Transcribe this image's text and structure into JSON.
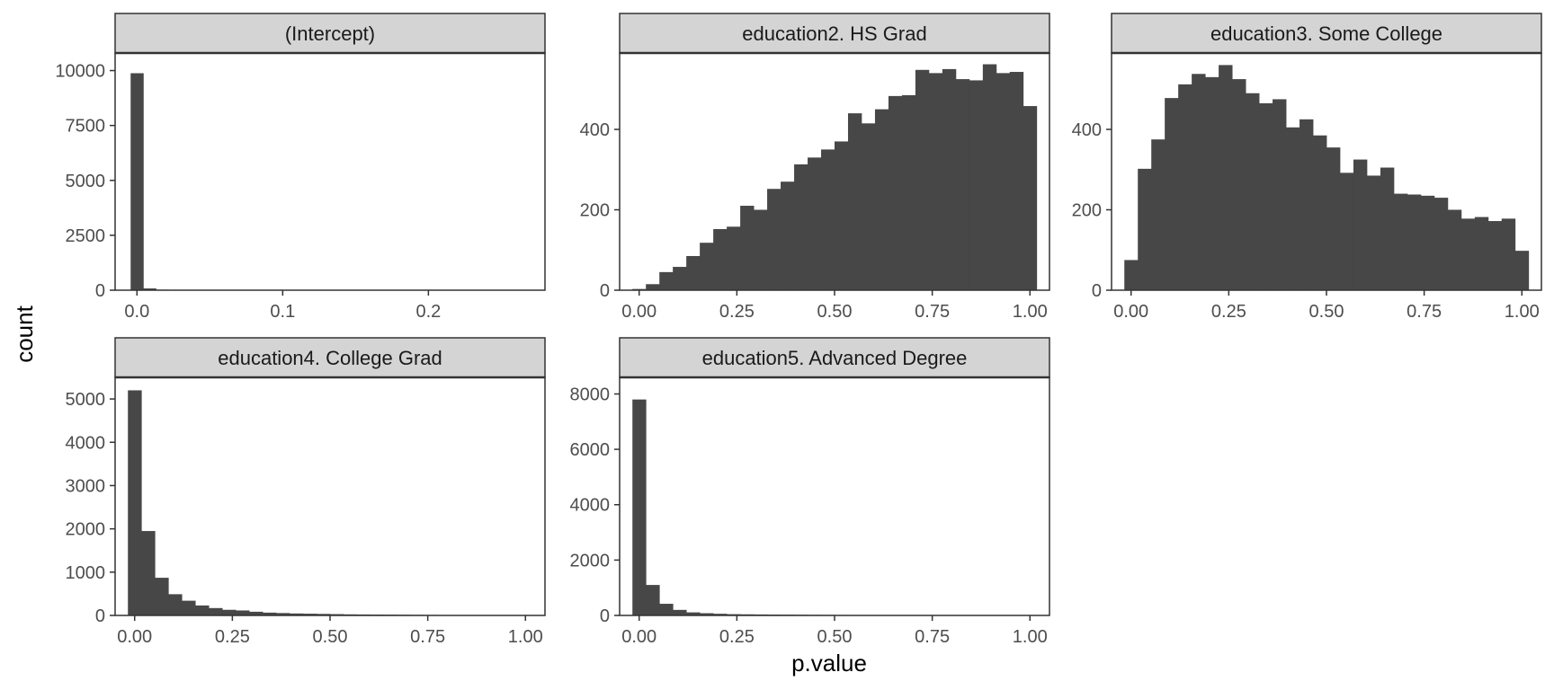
{
  "figure": {
    "xlabel": "p.value",
    "ylabel": "count",
    "bar_color": "#474747",
    "strip_fill": "#d4d4d4",
    "strip_border": "#333333",
    "panel_border": "#333333"
  },
  "chart_data": [
    {
      "type": "bar",
      "title": "(Intercept)",
      "xlim": [
        -0.015,
        0.28
      ],
      "ylim": [
        0,
        10800
      ],
      "bin_width": 0.0087,
      "x_ticks": [
        0.0,
        0.1,
        0.2
      ],
      "x_tick_labels": [
        "0.0",
        "0.1",
        "0.2"
      ],
      "y_ticks": [
        0,
        2500,
        5000,
        7500,
        10000
      ],
      "y_tick_labels": [
        "0",
        "2500",
        "5000",
        "7500",
        "10000"
      ],
      "x": [
        0.0,
        0.0087,
        0.0174,
        0.0261,
        0.0348,
        0.0435,
        0.0522,
        0.0609,
        0.0696,
        0.0783,
        0.087
      ],
      "values": [
        9880,
        80,
        25,
        15,
        10,
        5,
        0,
        8,
        5,
        4,
        3
      ]
    },
    {
      "type": "bar",
      "title": "education2. HS Grad",
      "xlim": [
        -0.05,
        1.05
      ],
      "ylim": [
        0,
        590
      ],
      "bin_width": 0.0345,
      "x_ticks": [
        0.0,
        0.25,
        0.5,
        0.75,
        1.0
      ],
      "x_tick_labels": [
        "0.00",
        "0.25",
        "0.50",
        "0.75",
        "1.00"
      ],
      "y_ticks": [
        0,
        200,
        400
      ],
      "y_tick_labels": [
        "0",
        "200",
        "400"
      ],
      "x": [
        0.0,
        0.0345,
        0.069,
        0.1034,
        0.1379,
        0.1724,
        0.2069,
        0.2414,
        0.2759,
        0.3103,
        0.3448,
        0.3793,
        0.4138,
        0.4483,
        0.4828,
        0.5172,
        0.5517,
        0.5862,
        0.6207,
        0.6552,
        0.6897,
        0.7241,
        0.7586,
        0.7931,
        0.8276,
        0.8621,
        0.8966,
        0.931,
        0.9655,
        1.0
      ],
      "values": [
        3,
        15,
        45,
        58,
        85,
        118,
        152,
        158,
        210,
        200,
        252,
        270,
        313,
        330,
        350,
        370,
        440,
        415,
        450,
        483,
        485,
        548,
        540,
        550,
        525,
        522,
        562,
        540,
        543,
        458
      ]
    },
    {
      "type": "bar",
      "title": "education3. Some College",
      "xlim": [
        -0.05,
        1.05
      ],
      "ylim": [
        0,
        590
      ],
      "bin_width": 0.0345,
      "x_ticks": [
        0.0,
        0.25,
        0.5,
        0.75,
        1.0
      ],
      "x_tick_labels": [
        "0.00",
        "0.25",
        "0.50",
        "0.75",
        "1.00"
      ],
      "y_ticks": [
        0,
        200,
        400
      ],
      "y_tick_labels": [
        "0",
        "200",
        "400"
      ],
      "x": [
        0.0,
        0.0345,
        0.069,
        0.1034,
        0.1379,
        0.1724,
        0.2069,
        0.2414,
        0.2759,
        0.3103,
        0.3448,
        0.3793,
        0.4138,
        0.4483,
        0.4828,
        0.5172,
        0.5517,
        0.5862,
        0.6207,
        0.6552,
        0.6897,
        0.7241,
        0.7586,
        0.7931,
        0.8276,
        0.8621,
        0.8966,
        0.931,
        0.9655,
        1.0
      ],
      "values": [
        75,
        302,
        375,
        478,
        512,
        538,
        530,
        560,
        525,
        490,
        465,
        475,
        405,
        425,
        385,
        355,
        292,
        325,
        285,
        305,
        240,
        238,
        235,
        230,
        200,
        178,
        182,
        172,
        178,
        98
      ]
    },
    {
      "type": "bar",
      "title": "education4. College Grad",
      "xlim": [
        -0.05,
        1.05
      ],
      "ylim": [
        0,
        5500
      ],
      "bin_width": 0.0345,
      "x_ticks": [
        0.0,
        0.25,
        0.5,
        0.75,
        1.0
      ],
      "x_tick_labels": [
        "0.00",
        "0.25",
        "0.50",
        "0.75",
        "1.00"
      ],
      "y_ticks": [
        0,
        1000,
        2000,
        3000,
        4000,
        5000
      ],
      "y_tick_labels": [
        "0",
        "1000",
        "2000",
        "3000",
        "4000",
        "5000"
      ],
      "x": [
        0.0,
        0.0345,
        0.069,
        0.1034,
        0.1379,
        0.1724,
        0.2069,
        0.2414,
        0.2759,
        0.3103,
        0.3448,
        0.3793,
        0.4138,
        0.4483,
        0.4828,
        0.5172,
        0.5517,
        0.5862,
        0.6207,
        0.6552,
        0.6897,
        0.7241,
        0.7586,
        0.7931,
        0.8276,
        0.8621,
        0.8966,
        0.931,
        0.9655,
        1.0
      ],
      "values": [
        5200,
        1950,
        870,
        490,
        340,
        230,
        170,
        130,
        115,
        85,
        65,
        55,
        45,
        40,
        35,
        30,
        25,
        22,
        20,
        18,
        16,
        14,
        12,
        10,
        9,
        8,
        7,
        6,
        5,
        5
      ]
    },
    {
      "type": "bar",
      "title": "education5. Advanced Degree",
      "xlim": [
        -0.05,
        1.05
      ],
      "ylim": [
        0,
        8600
      ],
      "bin_width": 0.0345,
      "x_ticks": [
        0.0,
        0.25,
        0.5,
        0.75,
        1.0
      ],
      "x_tick_labels": [
        "0.00",
        "0.25",
        "0.50",
        "0.75",
        "1.00"
      ],
      "y_ticks": [
        0,
        2000,
        4000,
        6000,
        8000
      ],
      "y_tick_labels": [
        "0",
        "2000",
        "4000",
        "6000",
        "8000"
      ],
      "x": [
        0.0,
        0.0345,
        0.069,
        0.1034,
        0.1379,
        0.1724,
        0.2069,
        0.2414,
        0.2759,
        0.3103,
        0.3448,
        0.3793,
        0.4138,
        0.4483,
        0.4828,
        0.5172,
        0.5517,
        0.5862,
        0.6207,
        0.6552,
        0.6897,
        0.7241,
        0.7586,
        0.7931,
        0.8276,
        0.8621,
        0.8966,
        0.931,
        0.9655,
        1.0
      ],
      "values": [
        7800,
        1100,
        420,
        200,
        110,
        80,
        60,
        45,
        40,
        35,
        30,
        28,
        25,
        22,
        20,
        18,
        16,
        15,
        14,
        12,
        11,
        10,
        9,
        8,
        7,
        6,
        6,
        5,
        5,
        4
      ]
    }
  ]
}
